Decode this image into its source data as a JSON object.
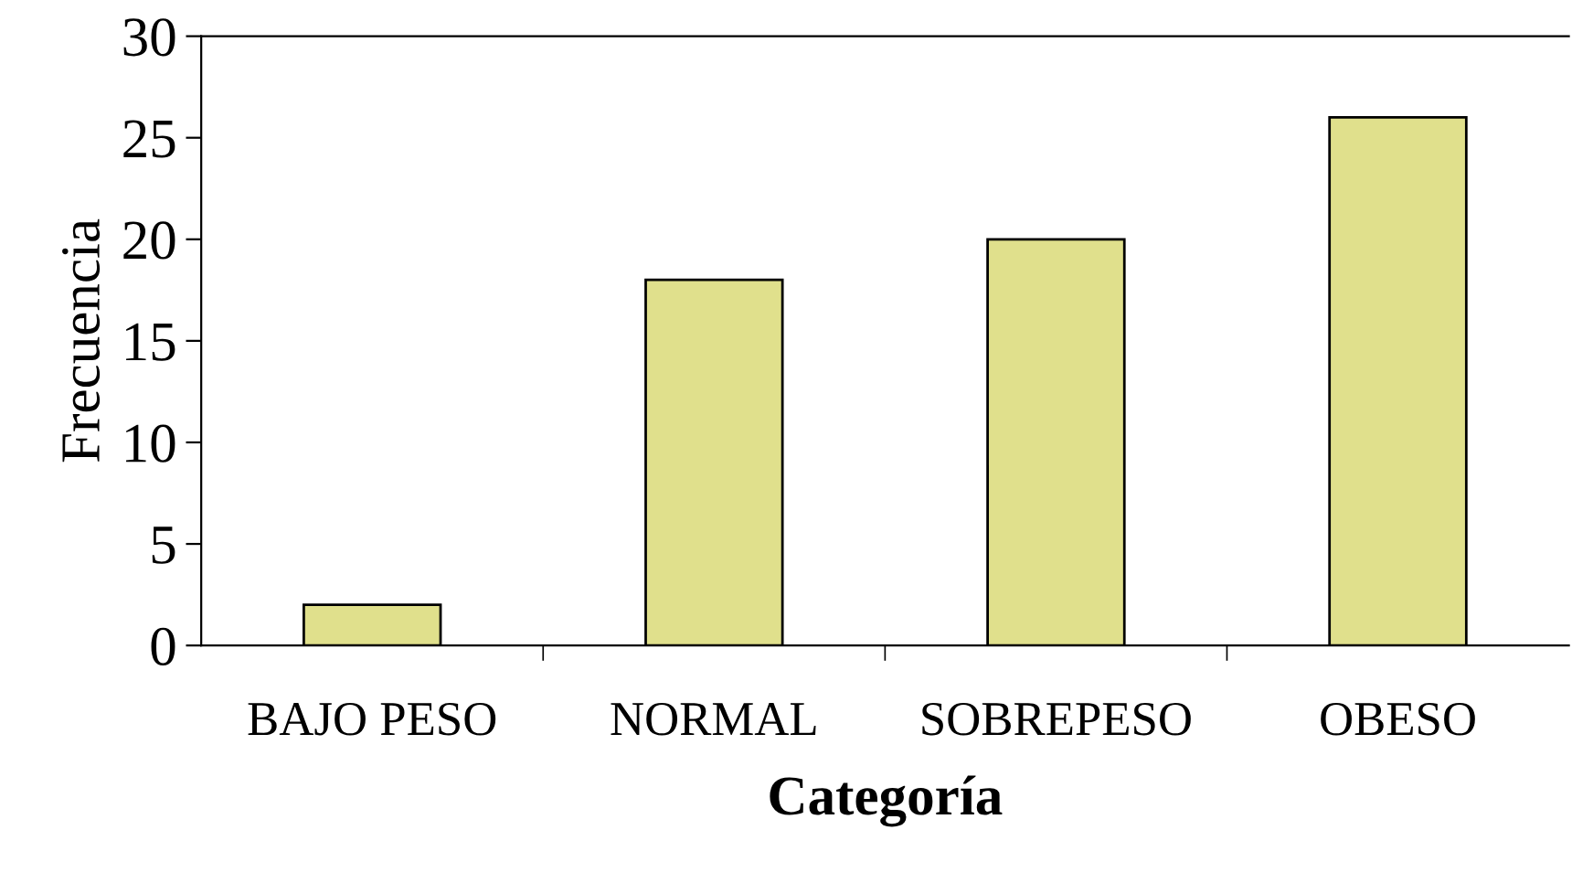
{
  "chart_data": {
    "type": "bar",
    "xlabel": "Categoría",
    "ylabel": "Frecuencia",
    "categories": [
      "BAJO PESO",
      "NORMAL",
      "SOBREPESO",
      "OBESO"
    ],
    "values": [
      2,
      18,
      20,
      26
    ],
    "color": "#e0e08c",
    "ylim": [
      0,
      30
    ],
    "yticks": [
      0,
      5,
      10,
      15,
      20,
      25,
      30
    ],
    "grid": false,
    "legend": false
  }
}
